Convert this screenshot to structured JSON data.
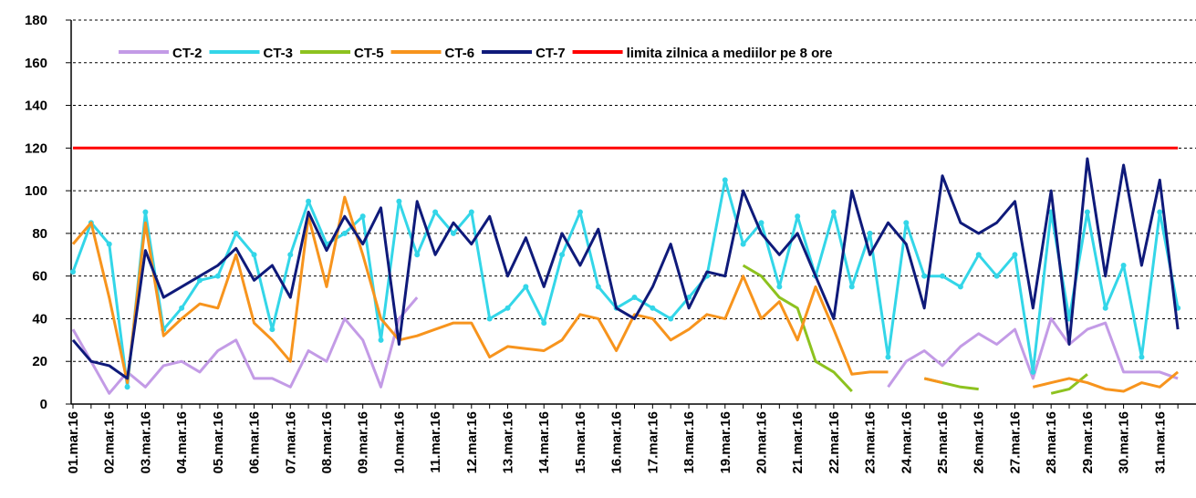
{
  "chart_data": {
    "type": "line",
    "categories": [
      "01.mar.16",
      null,
      "02.mar.16",
      null,
      "03.mar.16",
      null,
      "04.mar.16",
      null,
      "05.mar.16",
      null,
      "06.mar.16",
      null,
      "07.mar.16",
      null,
      "08.mar.16",
      null,
      "09.mar.16",
      null,
      "10.mar.16",
      null,
      "11.mar.16",
      null,
      "12.mar.16",
      null,
      "13.mar.16",
      null,
      "14.mar.16",
      null,
      "15.mar.16",
      null,
      "16.mar.16",
      null,
      "17.mar.16",
      null,
      "18.mar.16",
      null,
      "19.mar.16",
      null,
      "20.mar.16",
      null,
      "21.mar.16",
      null,
      "22.mar.16",
      null,
      "23.mar.16",
      null,
      "24.mar.16",
      null,
      "25.mar.16",
      null,
      "26.mar.16",
      null,
      "27.mar.16",
      null,
      "28.mar.16",
      null,
      "29.mar.16",
      null,
      "30.mar.16",
      null,
      "31.mar.16",
      null
    ],
    "series": [
      {
        "name": "CT-2",
        "color": "#c39be6",
        "values": [
          35,
          20,
          5,
          15,
          8,
          18,
          20,
          15,
          25,
          30,
          12,
          12,
          8,
          25,
          20,
          40,
          30,
          8,
          40,
          50,
          null,
          null,
          null,
          null,
          null,
          null,
          null,
          null,
          null,
          null,
          null,
          null,
          null,
          null,
          null,
          null,
          null,
          null,
          null,
          null,
          null,
          null,
          null,
          null,
          null,
          8,
          20,
          25,
          18,
          27,
          33,
          28,
          35,
          12,
          40,
          28,
          35,
          38,
          15,
          15,
          15,
          12
        ]
      },
      {
        "name": "CT-3",
        "color": "#33d6e8",
        "markers": true,
        "values": [
          62,
          85,
          75,
          8,
          90,
          35,
          45,
          58,
          60,
          80,
          70,
          35,
          70,
          95,
          75,
          80,
          88,
          30,
          95,
          70,
          90,
          80,
          90,
          40,
          45,
          55,
          38,
          70,
          90,
          55,
          45,
          50,
          45,
          40,
          50,
          60,
          105,
          75,
          85,
          55,
          88,
          60,
          90,
          55,
          80,
          22,
          85,
          60,
          60,
          55,
          70,
          60,
          70,
          15,
          90,
          40,
          90,
          45,
          65,
          22,
          90,
          45
        ]
      },
      {
        "name": "CT-5",
        "color": "#8dc21f",
        "values": [
          null,
          null,
          null,
          null,
          null,
          null,
          null,
          null,
          null,
          null,
          null,
          null,
          null,
          null,
          null,
          null,
          null,
          null,
          null,
          null,
          null,
          null,
          null,
          null,
          null,
          null,
          null,
          null,
          null,
          null,
          null,
          null,
          null,
          null,
          null,
          null,
          null,
          65,
          60,
          50,
          45,
          20,
          15,
          6,
          null,
          null,
          null,
          12,
          10,
          8,
          7,
          null,
          null,
          null,
          5,
          7,
          14,
          null,
          null,
          null,
          null,
          null
        ]
      },
      {
        "name": "CT-6",
        "color": "#f7941d",
        "values": [
          75,
          85,
          50,
          10,
          85,
          32,
          40,
          47,
          45,
          70,
          38,
          30,
          20,
          88,
          55,
          97,
          70,
          40,
          30,
          32,
          35,
          38,
          38,
          22,
          27,
          26,
          25,
          30,
          42,
          40,
          25,
          42,
          40,
          30,
          35,
          42,
          40,
          60,
          40,
          48,
          30,
          55,
          35,
          14,
          15,
          15,
          null,
          12,
          10,
          null,
          null,
          null,
          null,
          8,
          10,
          12,
          10,
          7,
          6,
          10,
          8,
          15
        ]
      },
      {
        "name": "CT-7",
        "color": "#0f1a7a",
        "values": [
          30,
          20,
          18,
          12,
          72,
          50,
          55,
          60,
          65,
          73,
          58,
          65,
          50,
          90,
          72,
          88,
          75,
          92,
          28,
          95,
          70,
          85,
          75,
          88,
          60,
          78,
          55,
          80,
          65,
          82,
          45,
          40,
          55,
          75,
          45,
          62,
          60,
          100,
          80,
          70,
          80,
          60,
          40,
          100,
          70,
          85,
          75,
          45,
          107,
          85,
          80,
          85,
          95,
          45,
          100,
          28,
          115,
          60,
          112,
          65,
          105,
          35
        ]
      },
      {
        "name": "limita zilnica a mediilor pe 8 ore",
        "color": "#ff0000",
        "values": [
          120,
          120,
          120,
          120,
          120,
          120,
          120,
          120,
          120,
          120,
          120,
          120,
          120,
          120,
          120,
          120,
          120,
          120,
          120,
          120,
          120,
          120,
          120,
          120,
          120,
          120,
          120,
          120,
          120,
          120,
          120,
          120,
          120,
          120,
          120,
          120,
          120,
          120,
          120,
          120,
          120,
          120,
          120,
          120,
          120,
          120,
          120,
          120,
          120,
          120,
          120,
          120,
          120,
          120,
          120,
          120,
          120,
          120,
          120,
          120,
          120,
          120
        ]
      }
    ],
    "ylim": [
      0,
      180
    ],
    "yticks": [
      0,
      20,
      40,
      60,
      80,
      100,
      120,
      140,
      160,
      180
    ],
    "grid": true,
    "legend": "top"
  }
}
